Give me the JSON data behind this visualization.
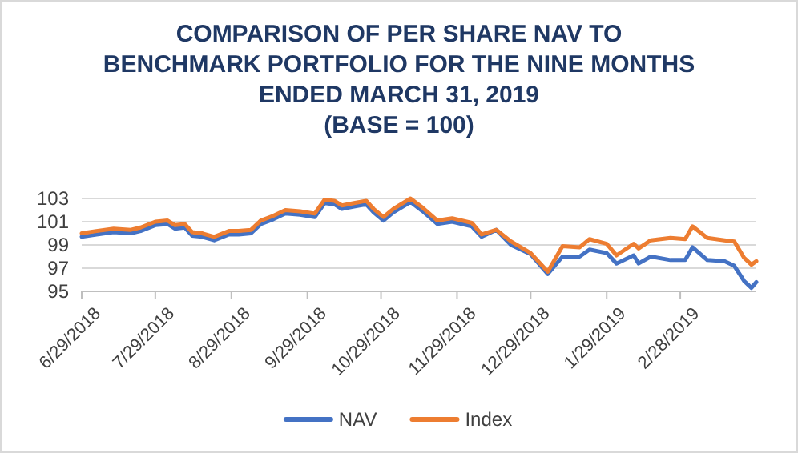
{
  "chart_data": {
    "type": "line",
    "title": "COMPARISON OF PER SHARE NAV TO\nBENCHMARK PORTFOLIO FOR THE NINE MONTHS\nENDED MARCH 31, 2019\n(BASE = 100)",
    "x": [
      "2018-06-29",
      "2018-07-05",
      "2018-07-12",
      "2018-07-19",
      "2018-07-23",
      "2018-07-29",
      "2018-08-03",
      "2018-08-06",
      "2018-08-10",
      "2018-08-13",
      "2018-08-17",
      "2018-08-22",
      "2018-08-28",
      "2018-09-01",
      "2018-09-06",
      "2018-09-10",
      "2018-09-15",
      "2018-09-20",
      "2018-09-26",
      "2018-10-02",
      "2018-10-06",
      "2018-10-10",
      "2018-10-13",
      "2018-10-18",
      "2018-10-23",
      "2018-10-26",
      "2018-10-30",
      "2018-11-03",
      "2018-11-10",
      "2018-11-15",
      "2018-11-21",
      "2018-11-27",
      "2018-12-05",
      "2018-12-09",
      "2018-12-15",
      "2018-12-21",
      "2018-12-29",
      "2019-01-05",
      "2019-01-11",
      "2019-01-18",
      "2019-01-22",
      "2019-01-29",
      "2019-02-02",
      "2019-02-09",
      "2019-02-11",
      "2019-02-16",
      "2019-02-24",
      "2019-03-02",
      "2019-03-05",
      "2019-03-11",
      "2019-03-18",
      "2019-03-22",
      "2019-03-26",
      "2019-03-29",
      "2019-03-31"
    ],
    "series": [
      {
        "name": "NAV",
        "color": "#4472c4",
        "values": [
          99.7,
          99.9,
          100.1,
          100.0,
          100.2,
          100.7,
          100.8,
          100.4,
          100.5,
          99.8,
          99.7,
          99.4,
          99.9,
          99.9,
          100.0,
          100.8,
          101.2,
          101.7,
          101.6,
          101.4,
          102.6,
          102.5,
          102.1,
          102.3,
          102.5,
          101.8,
          101.1,
          101.8,
          102.7,
          101.9,
          100.8,
          101.0,
          100.6,
          99.7,
          100.3,
          99.0,
          98.2,
          96.5,
          98.0,
          98.0,
          98.6,
          98.3,
          97.4,
          98.1,
          97.4,
          98.0,
          97.7,
          97.7,
          98.8,
          97.7,
          97.6,
          97.2,
          95.9,
          95.3,
          95.8
        ]
      },
      {
        "name": "Index",
        "color": "#ed7d31",
        "values": [
          100.0,
          100.2,
          100.4,
          100.3,
          100.5,
          101.0,
          101.1,
          100.7,
          100.8,
          100.1,
          100.0,
          99.7,
          100.2,
          100.2,
          100.3,
          101.1,
          101.5,
          102.0,
          101.9,
          101.7,
          102.9,
          102.8,
          102.4,
          102.6,
          102.8,
          102.1,
          101.4,
          102.1,
          103.0,
          102.2,
          101.1,
          101.3,
          100.9,
          99.9,
          100.3,
          99.3,
          98.3,
          96.7,
          98.9,
          98.8,
          99.5,
          99.1,
          98.1,
          99.1,
          98.7,
          99.4,
          99.6,
          99.5,
          100.6,
          99.6,
          99.4,
          99.3,
          97.9,
          97.3,
          97.6
        ]
      }
    ],
    "xlim": [
      "2018-06-29",
      "2019-03-31"
    ],
    "xticks": [
      {
        "value": "2018-06-29",
        "label": "6/29/2018"
      },
      {
        "value": "2018-07-29",
        "label": "7/29/2018"
      },
      {
        "value": "2018-08-29",
        "label": "8/29/2018"
      },
      {
        "value": "2018-09-29",
        "label": "9/29/2018"
      },
      {
        "value": "2018-10-29",
        "label": "10/29/2018"
      },
      {
        "value": "2018-11-29",
        "label": "11/29/2018"
      },
      {
        "value": "2018-12-29",
        "label": "12/29/2018"
      },
      {
        "value": "2019-01-29",
        "label": "1/29/2019"
      },
      {
        "value": "2019-02-28",
        "label": "2/28/2019"
      }
    ],
    "ylim": [
      95,
      103
    ],
    "yticks": [
      95,
      97,
      99,
      101,
      103
    ],
    "grid": "y",
    "legend": "bottom",
    "marker": "none",
    "line_style": "solid"
  }
}
